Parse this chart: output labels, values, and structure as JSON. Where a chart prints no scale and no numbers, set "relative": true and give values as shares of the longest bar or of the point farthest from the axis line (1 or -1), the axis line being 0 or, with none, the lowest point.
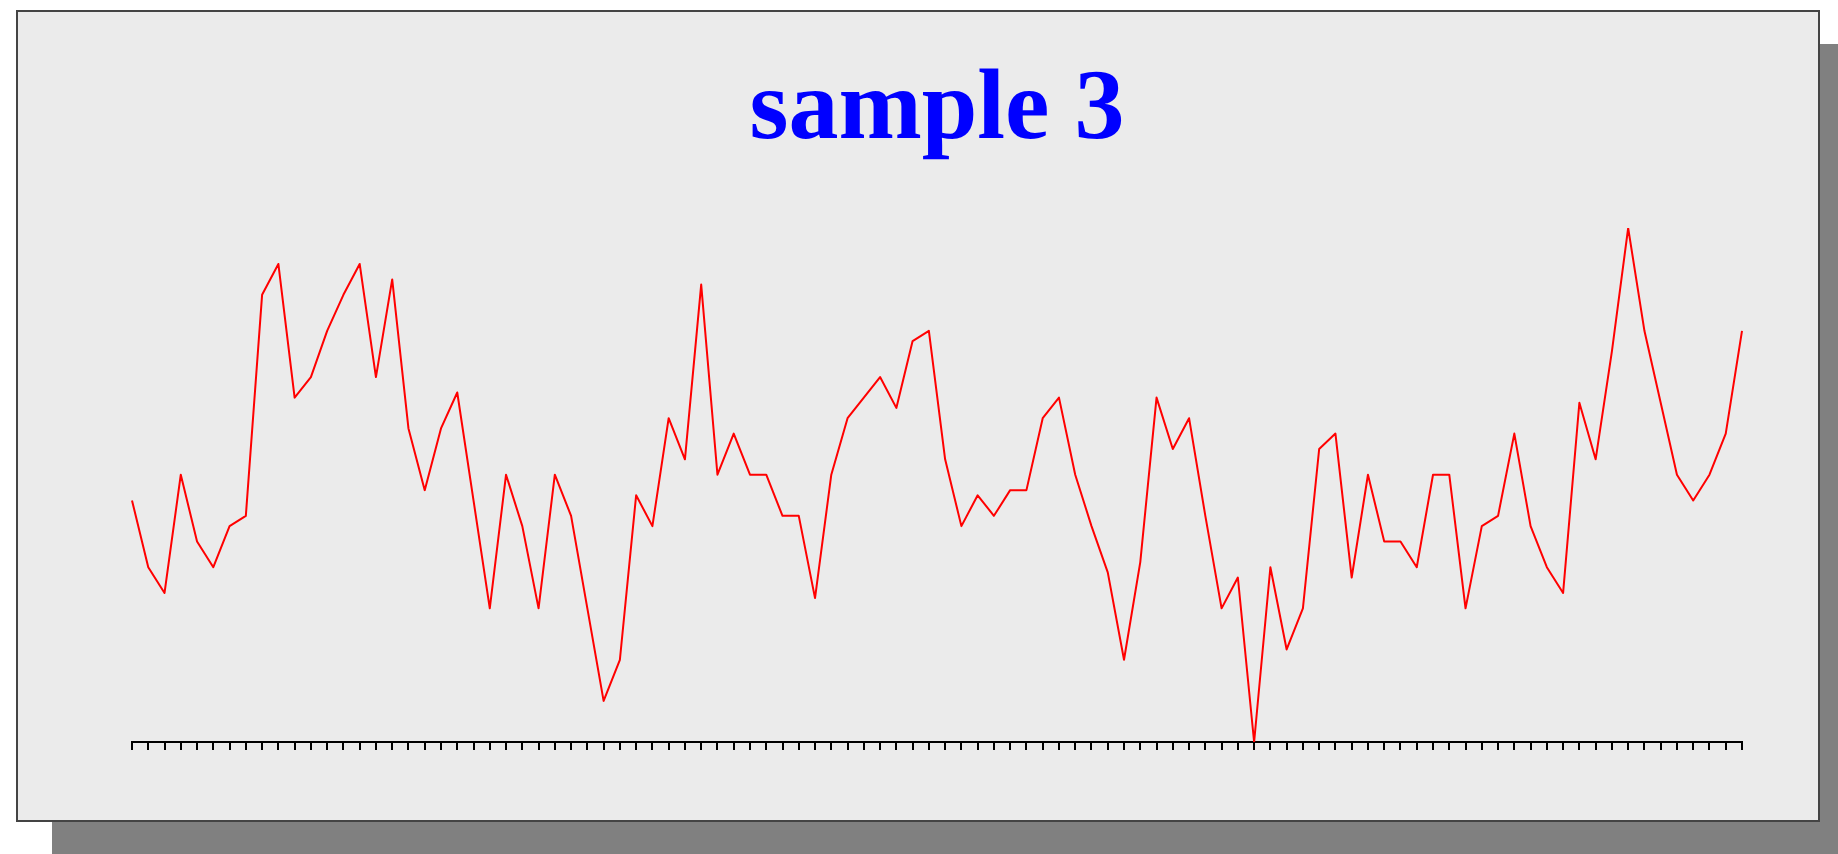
{
  "chart_data": {
    "type": "line",
    "title": "sample 3",
    "relative": true,
    "tick_labels": false,
    "grid": false,
    "color": "#ff0000",
    "categories": [
      null,
      null,
      null,
      null,
      null,
      null,
      null,
      null,
      null,
      null,
      null,
      null,
      null,
      null,
      null,
      null,
      null,
      null,
      null,
      null,
      null,
      null,
      null,
      null,
      null,
      null,
      null,
      null,
      null,
      null,
      null,
      null,
      null,
      null,
      null,
      null,
      null,
      null,
      null,
      null,
      null,
      null,
      null,
      null,
      null,
      null,
      null,
      null,
      null,
      null,
      null,
      null,
      null,
      null,
      null,
      null,
      null,
      null,
      null,
      null,
      null,
      null,
      null,
      null,
      null,
      null,
      null,
      null,
      null,
      null,
      null,
      null,
      null,
      null,
      null,
      null,
      null,
      null,
      null,
      null,
      null,
      null,
      null,
      null,
      null,
      null,
      null,
      null,
      null,
      null,
      null,
      null,
      null,
      null,
      null,
      null,
      null,
      null,
      null,
      null
    ],
    "values": [
      0.47,
      0.34,
      0.29,
      0.52,
      0.39,
      0.34,
      0.42,
      0.44,
      0.87,
      0.93,
      0.67,
      0.71,
      0.8,
      0.87,
      0.93,
      0.71,
      0.9,
      0.61,
      0.49,
      0.61,
      0.68,
      0.47,
      0.26,
      0.52,
      0.42,
      0.26,
      0.52,
      0.44,
      0.26,
      0.08,
      0.16,
      0.48,
      0.42,
      0.63,
      0.55,
      0.89,
      0.52,
      0.6,
      0.52,
      0.52,
      0.44,
      0.44,
      0.28,
      0.52,
      0.63,
      0.67,
      0.71,
      0.65,
      0.78,
      0.8,
      0.55,
      0.42,
      0.48,
      0.44,
      0.49,
      0.49,
      0.63,
      0.67,
      0.52,
      0.42,
      0.33,
      0.16,
      0.35,
      0.67,
      0.57,
      0.63,
      0.44,
      0.26,
      0.32,
      0,
      0.34,
      0.18,
      0.26,
      0.57,
      0.6,
      0.32,
      0.52,
      0.39,
      0.39,
      0.34,
      0.52,
      0.52,
      0.26,
      0.42,
      0.44,
      0.6,
      0.42,
      0.34,
      0.29,
      0.66,
      0.55,
      0.76,
      1,
      0.8,
      0.66,
      0.52,
      0.47,
      0.52,
      0.6,
      0.8
    ]
  }
}
